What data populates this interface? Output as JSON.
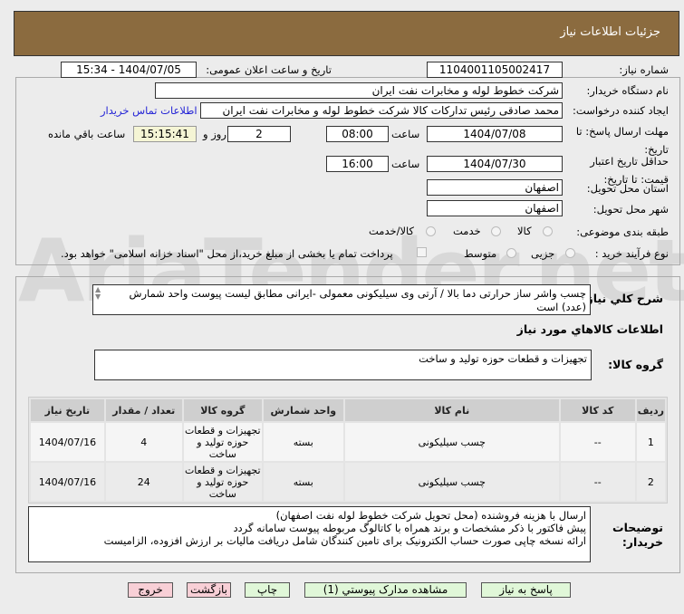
{
  "header": {
    "title": "جزئیات اطلاعات نیاز"
  },
  "fields": {
    "need_number_label": "شماره نیاز:",
    "need_number": "1104001105002417",
    "announce_label": "تاریخ و ساعت اعلان عمومی:",
    "announce_value": "1404/07/05 - 15:34",
    "buyer_label": "نام دستگاه خریدار:",
    "buyer": "شرکت خطوط لوله و مخابرات نفت ایران",
    "requester_label": "ایجاد کننده درخواست:",
    "requester": "محمد صادقی رئیس تدارکات کالا  شرکت خطوط لوله و مخابرات نفت ایران",
    "contact_link": "اطلاعات تماس خریدار",
    "deadline_label": "مهلت ارسال پاسخ: تا تاریخ:",
    "deadline_date": "1404/07/08",
    "hour_label": "ساعت",
    "deadline_time": "08:00",
    "days": "2",
    "days_label": "روز و",
    "remaining": "15:15:41",
    "remaining_label": "ساعت باقي مانده",
    "validity_label": "حداقل تاریخ اعتبار قیمت: تا تاریخ:",
    "validity_date": "1404/07/30",
    "validity_time": "16:00",
    "province_label": "استان محل تحویل:",
    "province": "اصفهان",
    "city_label": "شهر محل تحویل:",
    "city": "اصفهان",
    "category_label": "طبقه بندی موضوعی:",
    "category_options": [
      "کالا",
      "خدمت",
      "کالا/خدمت"
    ],
    "process_label": "نوع فرآیند خرید :",
    "process_options": [
      "جزیی",
      "متوسط"
    ],
    "payment_note": "پرداخت تمام یا بخشی از مبلغ خرید،از محل \"اسناد خزانه اسلامی\" خواهد بود."
  },
  "description": {
    "label": "شرح کلي نياز:",
    "text": "چسب واشر ساز حرارتی دما بالا / آرتی وی سیلیکونی معمولی -ایرانی مطابق لیست پیوست واحد شمارش (عدد) است"
  },
  "goods": {
    "title": "اطلاعات کالاهاي مورد نياز",
    "group_label": "گروه کالا:",
    "group": "تجهیزات و قطعات حوزه تولید و ساخت",
    "columns": [
      "ردیف",
      "کد کالا",
      "نام کالا",
      "واحد شمارش",
      "گروه کالا",
      "تعداد / مقدار",
      "تاریخ نیاز"
    ],
    "rows": [
      [
        "1",
        "--",
        "چسب سیلیکونی",
        "بسته",
        "تجهیزات و قطعات حوزه تولید و ساخت",
        "4",
        "1404/07/16"
      ],
      [
        "2",
        "--",
        "چسب سیلیکونی",
        "بسته",
        "تجهیزات و قطعات حوزه تولید و ساخت",
        "24",
        "1404/07/16"
      ]
    ]
  },
  "notes": {
    "label": "توضیحات خریدار:",
    "lines": [
      "ارسال  با هزینه فروشنده (محل تحویل شرکت خطوط لوله نفت اصفهان)",
      "پیش فاکتور با ذکر مشخصات و برند همراه با کاتالوگ مربوطه پیوست سامانه گردد",
      "ارائه نسخه چاپی صورت حساب الکترونیک برای تامین کنندگان شامل دریافت مالیات بر ارزش افزوده، الزامیست"
    ]
  },
  "buttons": {
    "reply": "پاسخ به نیاز",
    "attachments": "مشاهده مدارک پیوستي (1)",
    "print": "چاپ",
    "back": "بازگشت",
    "exit": "خروج"
  },
  "watermark": "AriaTender.net"
}
